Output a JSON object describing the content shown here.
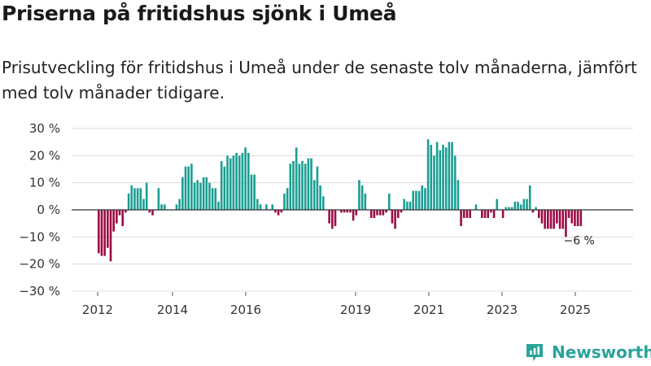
{
  "header": {
    "title": "Priserna på fritidshus sjönk i Umeå",
    "subtitle": "Prisutveckling för fritidshus i Umeå under de senaste tolv månaderna, jämfört med tolv månader tidigare."
  },
  "brand": {
    "name": "Newsworthy",
    "color": "#2aa39a"
  },
  "chart_data": {
    "type": "bar",
    "title": "Priserna på fritidshus sjönk i Umeå",
    "xlabel": "",
    "ylabel": "",
    "ylim": [
      -30,
      30
    ],
    "yticks": [
      -30,
      -20,
      -10,
      0,
      10,
      20,
      30
    ],
    "ytick_labels": [
      "−30 %",
      "−20 %",
      "−10 %",
      "0 %",
      "10 %",
      "20 %",
      "30 %"
    ],
    "x_tick_labels": [
      "2012",
      "2014",
      "2016",
      "2019",
      "2021",
      "2023",
      "2025"
    ],
    "positive_color": "#1a9e93",
    "negative_color": "#9c0b45",
    "grid": true,
    "annotation": {
      "text": "−6 %",
      "target": "last"
    },
    "values": [
      -16,
      -17,
      -17,
      -14,
      -19,
      -8,
      -5,
      -2,
      -6,
      -1,
      6,
      9,
      8,
      8,
      8,
      4,
      10,
      -1,
      -2,
      0,
      8,
      2,
      2,
      0,
      0,
      0,
      2,
      4,
      12,
      16,
      16,
      17,
      10,
      11,
      10,
      12,
      12,
      10,
      8,
      8,
      3,
      18,
      16,
      20,
      19,
      20,
      21,
      20,
      21,
      23,
      21,
      13,
      13,
      4,
      2,
      0,
      2,
      0,
      2,
      -1,
      -2,
      -1,
      6,
      8,
      17,
      18,
      23,
      17,
      18,
      17,
      19,
      19,
      11,
      16,
      9,
      5,
      0,
      -5,
      -7,
      -6,
      0,
      -1,
      -1,
      -1,
      -1,
      -4,
      -2,
      11,
      9,
      6,
      0,
      -3,
      -3,
      -2,
      -2,
      -2,
      -1,
      6,
      -5,
      -7,
      -3,
      -1,
      4,
      3,
      3,
      7,
      7,
      7,
      9,
      8,
      26,
      24,
      20,
      25,
      22,
      24,
      23,
      25,
      25,
      20,
      11,
      -6,
      -3,
      -3,
      -3,
      0,
      2,
      0,
      -3,
      -3,
      -3,
      -1,
      -3,
      4,
      0,
      -3,
      1,
      1,
      1,
      3,
      3,
      2,
      4,
      4,
      9,
      -1,
      1,
      -3,
      -5,
      -7,
      -7,
      -7,
      -7,
      -5,
      -7,
      -7,
      -10,
      -3,
      -5,
      -6,
      -6,
      -6
    ]
  }
}
